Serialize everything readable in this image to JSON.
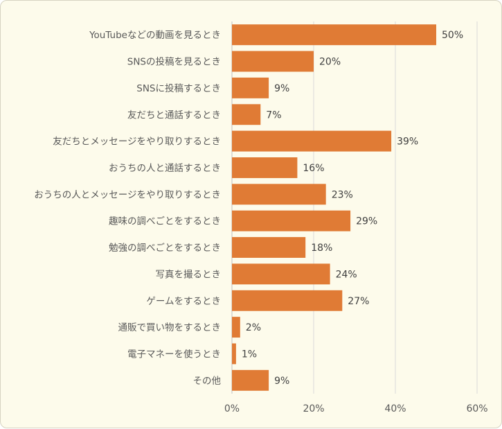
{
  "chart_data": {
    "type": "bar",
    "orientation": "horizontal",
    "categories": [
      "YouTubeなどの動画を見るとき",
      "SNSの投稿を見るとき",
      "SNSに投稿するとき",
      "友だちと通話するとき",
      "友だちとメッセージをやり取りするとき",
      "おうちの人と通話するとき",
      "おうちの人とメッセージをやり取りするとき",
      "趣味の調べごとをするとき",
      "勉強の調べごとをするとき",
      "写真を撮るとき",
      "ゲームをするとき",
      "通販で買い物をするとき",
      "電子マネーを使うとき",
      "その他"
    ],
    "values": [
      50,
      20,
      9,
      7,
      39,
      16,
      23,
      29,
      18,
      24,
      27,
      2,
      1,
      9
    ],
    "value_labels": [
      "50%",
      "20%",
      "9%",
      "7%",
      "39%",
      "16%",
      "23%",
      "29%",
      "18%",
      "24%",
      "27%",
      "2%",
      "1%",
      "9%"
    ],
    "xlim": [
      0,
      60
    ],
    "x_ticks": [
      0,
      20,
      40,
      60
    ],
    "x_tick_labels": [
      "0%",
      "20%",
      "40%",
      "60%"
    ],
    "grid": "vertical",
    "bar_color": "#e07b35",
    "grid_color": "#d9d9d9",
    "background_color": "#fdfbeb"
  }
}
